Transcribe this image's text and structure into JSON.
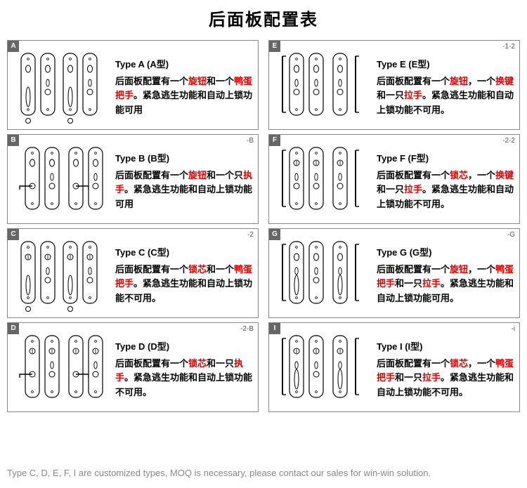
{
  "title": "后面板配置表",
  "footer": "Type  C, D, E, F, I are customized types, MOQ is necessary, please contact our sales for win-win solution.",
  "hl_color": "#d00",
  "text_color": "#000",
  "border_color": "#888",
  "badge_bg": "#666",
  "cards": [
    {
      "badge": "A",
      "suffix": "",
      "type_label": "Type A  (A型)",
      "desc_parts": [
        {
          "t": "后面板配置有一个",
          "h": false
        },
        {
          "t": "旋钮",
          "h": true
        },
        {
          "t": "和一个",
          "h": false
        },
        {
          "t": "鸭蛋把手",
          "h": true
        },
        {
          "t": "。紧急逃生功能和自动上锁功能可用",
          "h": false
        }
      ],
      "diagram": "A"
    },
    {
      "badge": "E",
      "suffix": "-1-2",
      "type_label": "Type E  (E型)",
      "desc_parts": [
        {
          "t": "后面板配置有一个",
          "h": false
        },
        {
          "t": "旋钮",
          "h": true
        },
        {
          "t": "，一个",
          "h": false
        },
        {
          "t": "换键",
          "h": true
        },
        {
          "t": "和一只",
          "h": false
        },
        {
          "t": "拉手",
          "h": true
        },
        {
          "t": "。紧急逃生功能和自动上锁功能不可用。",
          "h": false
        }
      ],
      "diagram": "E"
    },
    {
      "badge": "B",
      "suffix": "-B",
      "type_label": "Type B  (B型)",
      "desc_parts": [
        {
          "t": "后面板配置有一个",
          "h": false
        },
        {
          "t": "旋钮",
          "h": true
        },
        {
          "t": "和一个只",
          "h": false
        },
        {
          "t": "执手",
          "h": true
        },
        {
          "t": "。紧急逃生功能和自动上锁功能可用",
          "h": false
        }
      ],
      "diagram": "B"
    },
    {
      "badge": "F",
      "suffix": "-2-2",
      "type_label": "Type F  (F型)",
      "desc_parts": [
        {
          "t": "后面板配置有一个",
          "h": false
        },
        {
          "t": "锁芯",
          "h": true
        },
        {
          "t": "，一个",
          "h": false
        },
        {
          "t": "换键",
          "h": true
        },
        {
          "t": "和一只",
          "h": false
        },
        {
          "t": "拉手",
          "h": true
        },
        {
          "t": "。紧急逃生功能和自动上锁功能不可用。",
          "h": false
        }
      ],
      "diagram": "F"
    },
    {
      "badge": "C",
      "suffix": "-2",
      "type_label": "Type C  (C型)",
      "desc_parts": [
        {
          "t": "后面板配置有一个",
          "h": false
        },
        {
          "t": "锁芯",
          "h": true
        },
        {
          "t": "和一个",
          "h": false
        },
        {
          "t": "鸭蛋把手",
          "h": true
        },
        {
          "t": "。紧急逃生功能和自动上锁功能不可用。",
          "h": false
        }
      ],
      "diagram": "C"
    },
    {
      "badge": "G",
      "suffix": "-G",
      "type_label": "Type G  (G型)",
      "desc_parts": [
        {
          "t": "后面板配置有一个",
          "h": false
        },
        {
          "t": "旋钮",
          "h": true
        },
        {
          "t": "，一个",
          "h": false
        },
        {
          "t": "鸭蛋把手",
          "h": true
        },
        {
          "t": "和一只",
          "h": false
        },
        {
          "t": "拉手",
          "h": true
        },
        {
          "t": "。紧急逃生功能和自动上锁功能可用。",
          "h": false
        }
      ],
      "diagram": "G"
    },
    {
      "badge": "D",
      "suffix": "-2-B",
      "type_label": "Type D  (D型)",
      "desc_parts": [
        {
          "t": "后面板配置有一个",
          "h": false
        },
        {
          "t": "锁芯",
          "h": true
        },
        {
          "t": "和一只",
          "h": false
        },
        {
          "t": "执手",
          "h": true
        },
        {
          "t": "。紧急逃生功能和自动上锁功能不可用。",
          "h": false
        }
      ],
      "diagram": "D"
    },
    {
      "badge": "I",
      "suffix": "-i",
      "type_label": "Type I  (I型)",
      "desc_parts": [
        {
          "t": "后面板配置有一个",
          "h": false
        },
        {
          "t": "锁芯",
          "h": true
        },
        {
          "t": "，一个",
          "h": false
        },
        {
          "t": "鸭蛋把手",
          "h": true
        },
        {
          "t": "和一只",
          "h": false
        },
        {
          "t": "拉手",
          "h": true
        },
        {
          "t": "。紧急逃生功能和自动上锁功能不可用。",
          "h": false
        }
      ],
      "diagram": "I"
    }
  ],
  "svg_defs": {
    "plate_stroke": "#000",
    "plate_fill": "#fff",
    "plate_w": 20,
    "plate_h": 88,
    "plate_rx": 9
  }
}
